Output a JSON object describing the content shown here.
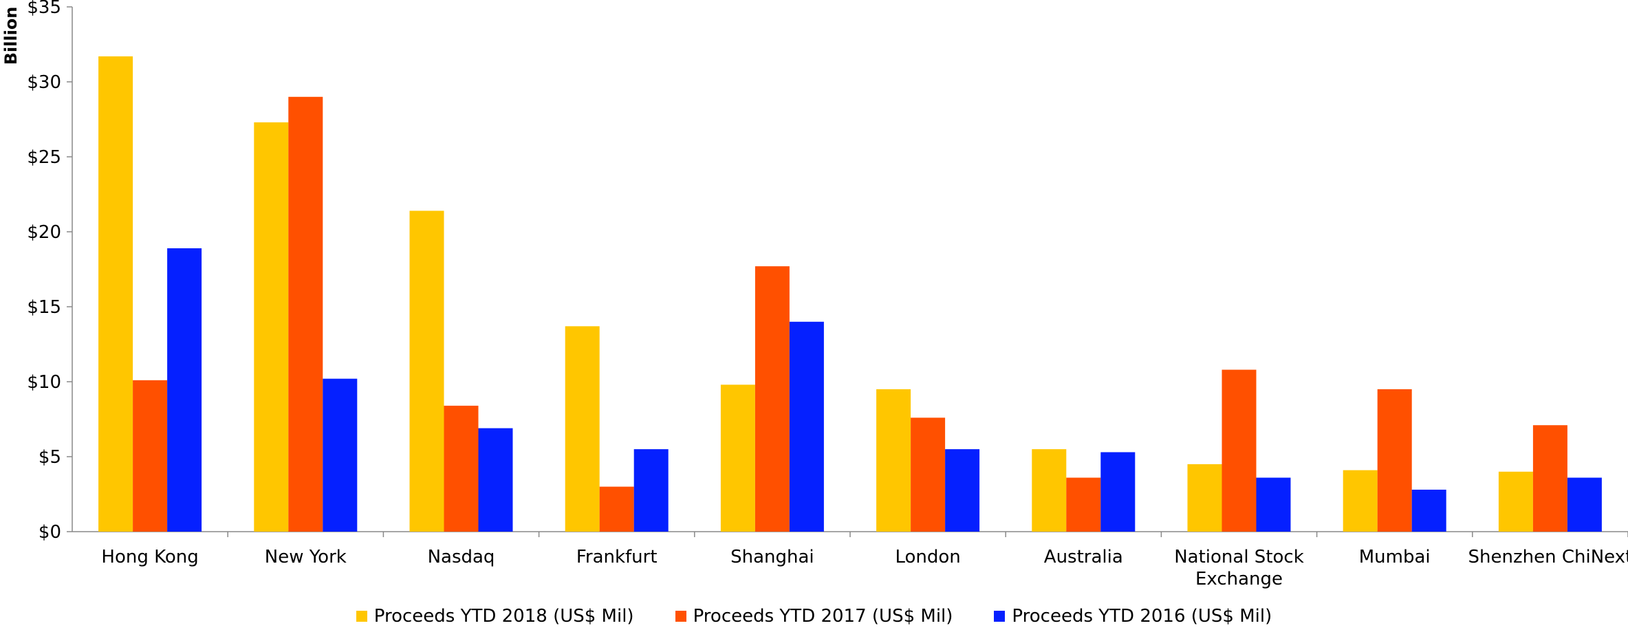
{
  "chart_data": {
    "type": "bar",
    "title": "",
    "xlabel": "",
    "ylabel": "Billion",
    "ylim": [
      0,
      35
    ],
    "yticks": [
      0,
      5,
      10,
      15,
      20,
      25,
      30,
      35
    ],
    "ytick_labels": [
      "$0",
      "$5",
      "$10",
      "$15",
      "$20",
      "$25",
      "$30",
      "$35"
    ],
    "grid": false,
    "legend_position": "bottom",
    "categories": [
      [
        "Hong Kong"
      ],
      [
        "New York"
      ],
      [
        "Nasdaq"
      ],
      [
        "Frankfurt"
      ],
      [
        "Shanghai"
      ],
      [
        "London"
      ],
      [
        "Australia"
      ],
      [
        "National Stock",
        "Exchange"
      ],
      [
        "Mumbai"
      ],
      [
        "Shenzhen ChiNext"
      ]
    ],
    "series": [
      {
        "name": "Proceeds YTD 2018 (US$ Mil)",
        "color": "#FFC600",
        "values": [
          31.7,
          27.3,
          21.4,
          13.7,
          9.8,
          9.5,
          5.5,
          4.5,
          4.1,
          4.0
        ]
      },
      {
        "name": "Proceeds YTD 2017 (US$ Mil)",
        "color": "#FF5000",
        "values": [
          10.1,
          29.0,
          8.4,
          3.0,
          17.7,
          7.6,
          3.6,
          10.8,
          9.5,
          7.1
        ]
      },
      {
        "name": "Proceeds YTD 2016 (US$ Mil)",
        "color": "#0520FF",
        "values": [
          18.9,
          10.2,
          6.9,
          5.5,
          14.0,
          5.5,
          5.3,
          3.6,
          2.8,
          3.6
        ]
      }
    ]
  }
}
